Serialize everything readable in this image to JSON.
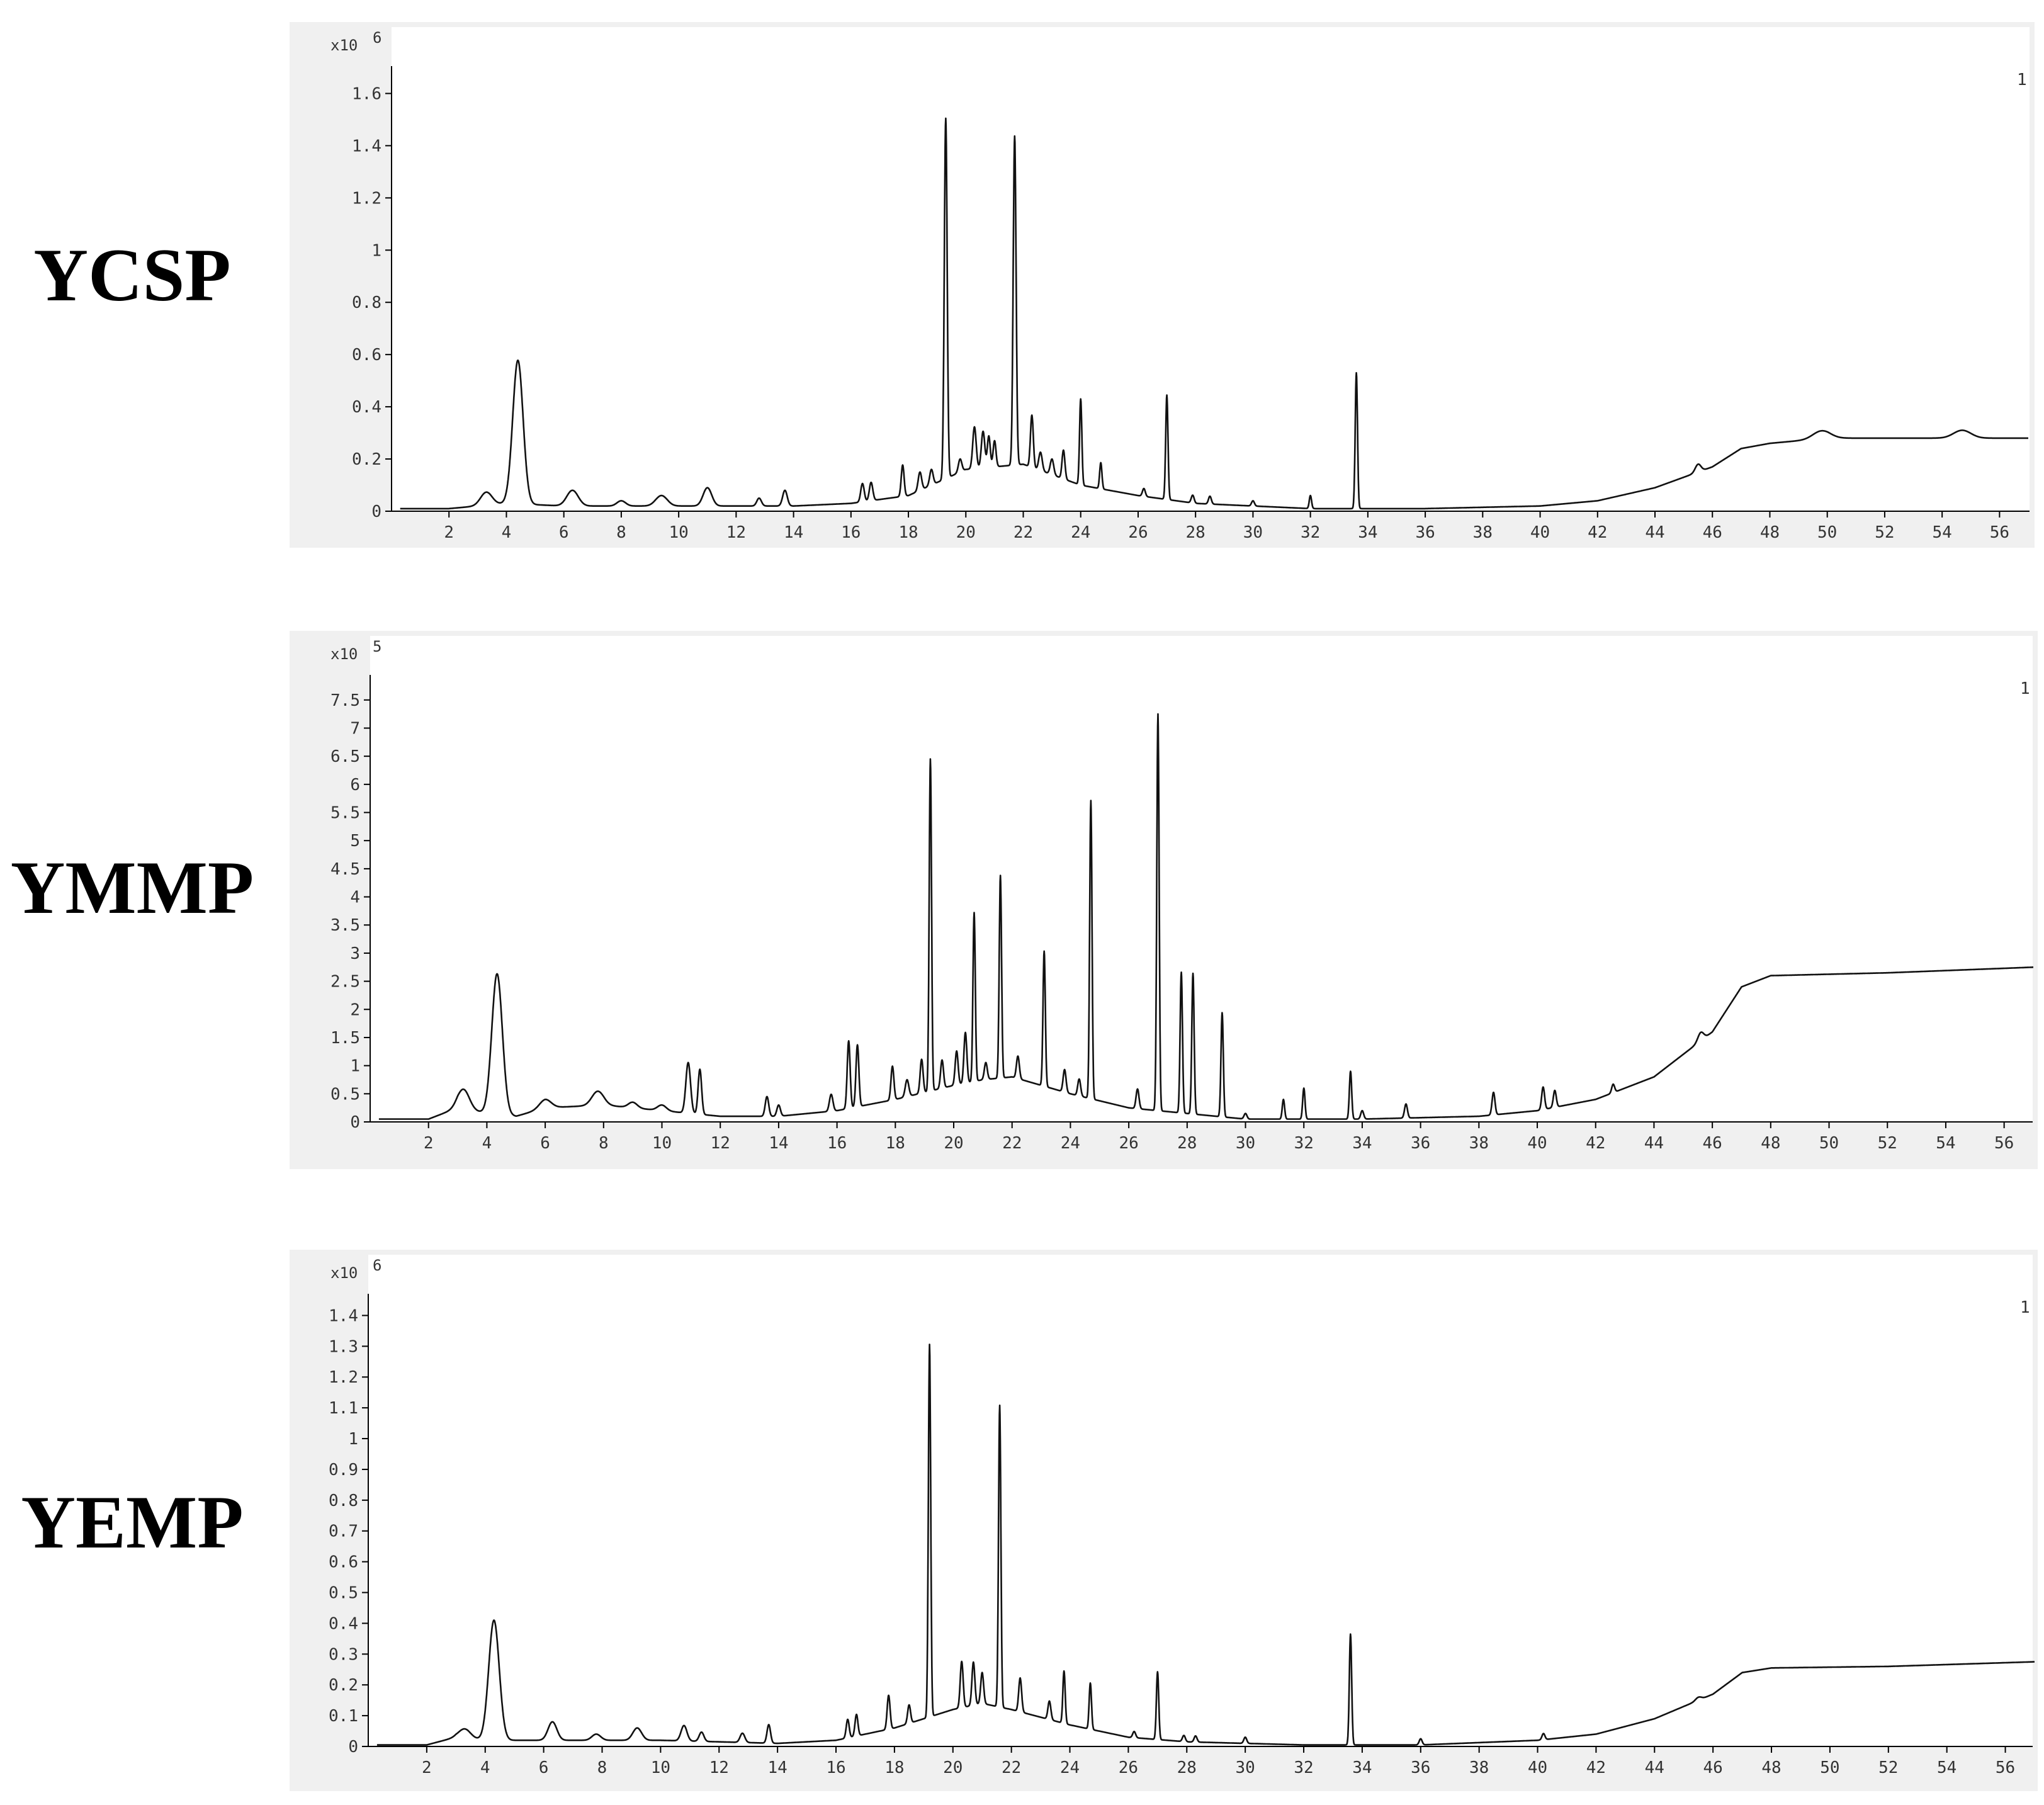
{
  "chart_data": [
    {
      "type": "line",
      "title": "YCSP",
      "y_unit_label": "x10",
      "y_unit_exp": "6",
      "trace_label": "1",
      "xlim": [
        0,
        57
      ],
      "ylim": [
        0,
        1.7
      ],
      "x_ticks": [
        "2",
        "4",
        "6",
        "8",
        "10",
        "12",
        "14",
        "16",
        "18",
        "20",
        "22",
        "24",
        "26",
        "28",
        "30",
        "32",
        "34",
        "36",
        "38",
        "40",
        "42",
        "44",
        "46",
        "48",
        "50",
        "52",
        "54",
        "56"
      ],
      "y_ticks": [
        "0",
        "0.2",
        "0.4",
        "0.6",
        "0.8",
        "1",
        "1.2",
        "1.4",
        "1.6"
      ],
      "baseline": [
        [
          0,
          0.01
        ],
        [
          2,
          0.01
        ],
        [
          4,
          0.03
        ],
        [
          6,
          0.02
        ],
        [
          10,
          0.02
        ],
        [
          14,
          0.02
        ],
        [
          16,
          0.03
        ],
        [
          18,
          0.06
        ],
        [
          20,
          0.16
        ],
        [
          21,
          0.17
        ],
        [
          22,
          0.18
        ],
        [
          24,
          0.1
        ],
        [
          26,
          0.06
        ],
        [
          28,
          0.03
        ],
        [
          32,
          0.01
        ],
        [
          36,
          0.01
        ],
        [
          40,
          0.02
        ],
        [
          42,
          0.04
        ],
        [
          44,
          0.09
        ],
        [
          46,
          0.17
        ],
        [
          47,
          0.24
        ],
        [
          48,
          0.26
        ],
        [
          49,
          0.27
        ],
        [
          50,
          0.28
        ],
        [
          52,
          0.28
        ],
        [
          54,
          0.28
        ],
        [
          57,
          0.28
        ]
      ],
      "peaks": [
        [
          3.3,
          0.05,
          0.2
        ],
        [
          4.4,
          0.55,
          0.18
        ],
        [
          6.3,
          0.06,
          0.2
        ],
        [
          8.0,
          0.02,
          0.15
        ],
        [
          9.4,
          0.04,
          0.2
        ],
        [
          11.0,
          0.07,
          0.15
        ],
        [
          12.8,
          0.03,
          0.08
        ],
        [
          13.7,
          0.06,
          0.08
        ],
        [
          16.4,
          0.07,
          0.06
        ],
        [
          16.7,
          0.07,
          0.06
        ],
        [
          17.8,
          0.12,
          0.05
        ],
        [
          18.4,
          0.07,
          0.06
        ],
        [
          18.8,
          0.06,
          0.06
        ],
        [
          19.3,
          1.38,
          0.05
        ],
        [
          19.8,
          0.05,
          0.06
        ],
        [
          20.3,
          0.16,
          0.06
        ],
        [
          20.6,
          0.14,
          0.06
        ],
        [
          20.8,
          0.12,
          0.05
        ],
        [
          21.0,
          0.1,
          0.05
        ],
        [
          21.7,
          1.26,
          0.05
        ],
        [
          22.3,
          0.2,
          0.05
        ],
        [
          22.6,
          0.07,
          0.06
        ],
        [
          23.0,
          0.06,
          0.06
        ],
        [
          23.4,
          0.11,
          0.05
        ],
        [
          24.0,
          0.33,
          0.04
        ],
        [
          24.7,
          0.1,
          0.04
        ],
        [
          26.2,
          0.03,
          0.05
        ],
        [
          27.0,
          0.4,
          0.04
        ],
        [
          27.9,
          0.03,
          0.05
        ],
        [
          28.5,
          0.03,
          0.05
        ],
        [
          30.0,
          0.02,
          0.05
        ],
        [
          32.0,
          0.05,
          0.04
        ],
        [
          33.6,
          0.52,
          0.04
        ],
        [
          45.5,
          0.03,
          0.1
        ],
        [
          49.8,
          0.03,
          0.3
        ],
        [
          54.7,
          0.03,
          0.3
        ]
      ]
    },
    {
      "type": "line",
      "title": "YMMP",
      "y_unit_label": "x10",
      "y_unit_exp": "5",
      "trace_label": "1",
      "xlim": [
        0,
        57
      ],
      "ylim": [
        0,
        7.8
      ],
      "x_ticks": [
        "2",
        "4",
        "6",
        "8",
        "10",
        "12",
        "14",
        "16",
        "18",
        "20",
        "22",
        "24",
        "26",
        "28",
        "30",
        "32",
        "34",
        "36",
        "38",
        "40",
        "42",
        "44",
        "46",
        "48",
        "50",
        "52",
        "54",
        "56"
      ],
      "y_ticks": [
        "0",
        "0.5",
        "1",
        "1.5",
        "2",
        "2.5",
        "3",
        "3.5",
        "4",
        "4.5",
        "5",
        "5.5",
        "6",
        "6.5",
        "7",
        "7.5"
      ],
      "baseline": [
        [
          0,
          0.05
        ],
        [
          2,
          0.05
        ],
        [
          3,
          0.25
        ],
        [
          4,
          0.15
        ],
        [
          5,
          0.1
        ],
        [
          6,
          0.25
        ],
        [
          8,
          0.3
        ],
        [
          10,
          0.2
        ],
        [
          12,
          0.1
        ],
        [
          14,
          0.1
        ],
        [
          16,
          0.2
        ],
        [
          18,
          0.4
        ],
        [
          20,
          0.65
        ],
        [
          21,
          0.75
        ],
        [
          22,
          0.8
        ],
        [
          24,
          0.5
        ],
        [
          26,
          0.25
        ],
        [
          28,
          0.15
        ],
        [
          30,
          0.05
        ],
        [
          34,
          0.05
        ],
        [
          38,
          0.1
        ],
        [
          40,
          0.2
        ],
        [
          42,
          0.4
        ],
        [
          44,
          0.8
        ],
        [
          46,
          1.6
        ],
        [
          47,
          2.4
        ],
        [
          48,
          2.6
        ],
        [
          52,
          2.65
        ],
        [
          57,
          2.75
        ]
      ],
      "peaks": [
        [
          3.2,
          0.35,
          0.2
        ],
        [
          4.35,
          2.5,
          0.18
        ],
        [
          6.0,
          0.15,
          0.2
        ],
        [
          7.8,
          0.25,
          0.2
        ],
        [
          9.0,
          0.1,
          0.15
        ],
        [
          10.0,
          0.1,
          0.15
        ],
        [
          10.9,
          0.9,
          0.08
        ],
        [
          11.3,
          0.8,
          0.06
        ],
        [
          13.6,
          0.35,
          0.06
        ],
        [
          14.0,
          0.2,
          0.06
        ],
        [
          15.8,
          0.3,
          0.06
        ],
        [
          16.4,
          1.2,
          0.05
        ],
        [
          16.7,
          1.1,
          0.05
        ],
        [
          17.9,
          0.6,
          0.05
        ],
        [
          18.4,
          0.3,
          0.06
        ],
        [
          18.9,
          0.6,
          0.05
        ],
        [
          19.2,
          5.9,
          0.04
        ],
        [
          19.6,
          0.5,
          0.05
        ],
        [
          20.1,
          0.6,
          0.05
        ],
        [
          20.4,
          0.9,
          0.05
        ],
        [
          20.7,
          3.0,
          0.04
        ],
        [
          21.1,
          0.3,
          0.05
        ],
        [
          21.6,
          3.6,
          0.04
        ],
        [
          22.2,
          0.4,
          0.05
        ],
        [
          23.1,
          2.4,
          0.04
        ],
        [
          23.8,
          0.4,
          0.05
        ],
        [
          24.3,
          0.3,
          0.05
        ],
        [
          24.7,
          5.3,
          0.04
        ],
        [
          26.3,
          0.35,
          0.05
        ],
        [
          27.0,
          7.05,
          0.04
        ],
        [
          27.8,
          2.5,
          0.04
        ],
        [
          28.2,
          2.5,
          0.04
        ],
        [
          29.2,
          1.85,
          0.04
        ],
        [
          30.0,
          0.1,
          0.05
        ],
        [
          31.3,
          0.35,
          0.04
        ],
        [
          32.0,
          0.55,
          0.04
        ],
        [
          33.6,
          0.85,
          0.04
        ],
        [
          34.0,
          0.15,
          0.05
        ],
        [
          35.5,
          0.25,
          0.05
        ],
        [
          38.5,
          0.4,
          0.05
        ],
        [
          40.2,
          0.4,
          0.05
        ],
        [
          40.6,
          0.3,
          0.05
        ],
        [
          42.6,
          0.15,
          0.05
        ],
        [
          45.6,
          0.15,
          0.1
        ]
      ]
    },
    {
      "type": "line",
      "title": "YEMP",
      "y_unit_label": "x10",
      "y_unit_exp": "6",
      "trace_label": "1",
      "xlim": [
        0,
        57
      ],
      "ylim": [
        0,
        1.45
      ],
      "x_ticks": [
        "2",
        "4",
        "6",
        "8",
        "10",
        "12",
        "14",
        "16",
        "18",
        "20",
        "22",
        "24",
        "26",
        "28",
        "30",
        "32",
        "34",
        "36",
        "38",
        "40",
        "42",
        "44",
        "46",
        "48",
        "50",
        "52",
        "54",
        "56"
      ],
      "y_ticks": [
        "0",
        "0.1",
        "0.2",
        "0.3",
        "0.4",
        "0.5",
        "0.6",
        "0.7",
        "0.8",
        "0.9",
        "1",
        "1.1",
        "1.2",
        "1.3",
        "1.4"
      ],
      "baseline": [
        [
          0,
          0.005
        ],
        [
          2,
          0.005
        ],
        [
          3,
          0.03
        ],
        [
          4,
          0.02
        ],
        [
          6,
          0.02
        ],
        [
          10,
          0.02
        ],
        [
          14,
          0.01
        ],
        [
          16,
          0.02
        ],
        [
          18,
          0.06
        ],
        [
          20,
          0.12
        ],
        [
          21,
          0.14
        ],
        [
          22,
          0.12
        ],
        [
          24,
          0.07
        ],
        [
          26,
          0.03
        ],
        [
          28,
          0.015
        ],
        [
          32,
          0.005
        ],
        [
          36,
          0.005
        ],
        [
          40,
          0.02
        ],
        [
          42,
          0.04
        ],
        [
          44,
          0.09
        ],
        [
          46,
          0.17
        ],
        [
          47,
          0.24
        ],
        [
          48,
          0.255
        ],
        [
          52,
          0.26
        ],
        [
          57,
          0.275
        ]
      ],
      "peaks": [
        [
          3.3,
          0.03,
          0.2
        ],
        [
          4.3,
          0.39,
          0.18
        ],
        [
          6.3,
          0.06,
          0.15
        ],
        [
          7.8,
          0.02,
          0.15
        ],
        [
          9.2,
          0.04,
          0.15
        ],
        [
          10.8,
          0.05,
          0.1
        ],
        [
          11.4,
          0.03,
          0.08
        ],
        [
          12.8,
          0.03,
          0.08
        ],
        [
          13.7,
          0.06,
          0.06
        ],
        [
          16.4,
          0.06,
          0.05
        ],
        [
          16.7,
          0.07,
          0.05
        ],
        [
          17.8,
          0.11,
          0.05
        ],
        [
          18.5,
          0.06,
          0.05
        ],
        [
          19.2,
          1.21,
          0.04
        ],
        [
          20.3,
          0.15,
          0.05
        ],
        [
          20.7,
          0.14,
          0.05
        ],
        [
          21.0,
          0.1,
          0.05
        ],
        [
          21.6,
          0.98,
          0.04
        ],
        [
          22.3,
          0.11,
          0.05
        ],
        [
          23.3,
          0.06,
          0.05
        ],
        [
          23.8,
          0.17,
          0.04
        ],
        [
          24.7,
          0.15,
          0.04
        ],
        [
          26.2,
          0.02,
          0.05
        ],
        [
          27.0,
          0.22,
          0.04
        ],
        [
          27.9,
          0.02,
          0.05
        ],
        [
          28.3,
          0.02,
          0.05
        ],
        [
          30.0,
          0.02,
          0.05
        ],
        [
          33.6,
          0.36,
          0.04
        ],
        [
          36.0,
          0.02,
          0.05
        ],
        [
          40.2,
          0.02,
          0.05
        ],
        [
          45.5,
          0.01,
          0.1
        ]
      ]
    }
  ]
}
